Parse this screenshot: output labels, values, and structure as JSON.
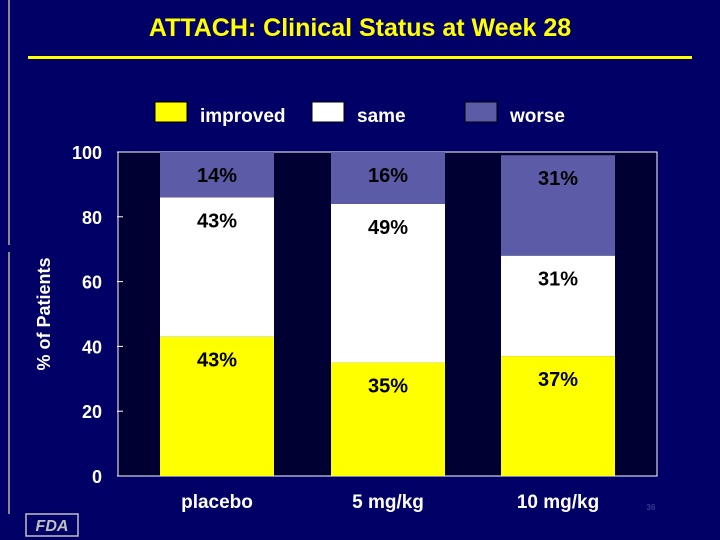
{
  "chart_data": {
    "type": "bar",
    "stacked": true,
    "title": "ATTACH: Clinical Status at Week 28",
    "ylabel": "% of Patients",
    "xlabel": "",
    "ylim": [
      0,
      100
    ],
    "yticks": [
      0,
      20,
      40,
      60,
      80,
      100
    ],
    "categories": [
      "placebo",
      "5 mg/kg",
      "10 mg/kg"
    ],
    "legend_position": "top",
    "grid": false,
    "series": [
      {
        "name": "improved",
        "color": "#ffff00",
        "values": [
          43,
          35,
          37
        ],
        "labels": [
          "43%",
          "35%",
          "37%"
        ]
      },
      {
        "name": "same",
        "color": "#ffffff",
        "values": [
          43,
          49,
          31
        ],
        "labels": [
          "43%",
          "49%",
          "31%"
        ]
      },
      {
        "name": "worse",
        "color": "#5b5ba8",
        "values": [
          14,
          16,
          31
        ],
        "labels": [
          "14%",
          "16%",
          "31%"
        ]
      }
    ]
  },
  "colors": {
    "background": "#000066",
    "title": "#ffff00",
    "text": "#ffffff",
    "plot_background": "#000033"
  },
  "footer": {
    "page_number": "36",
    "logo": "FDA"
  }
}
